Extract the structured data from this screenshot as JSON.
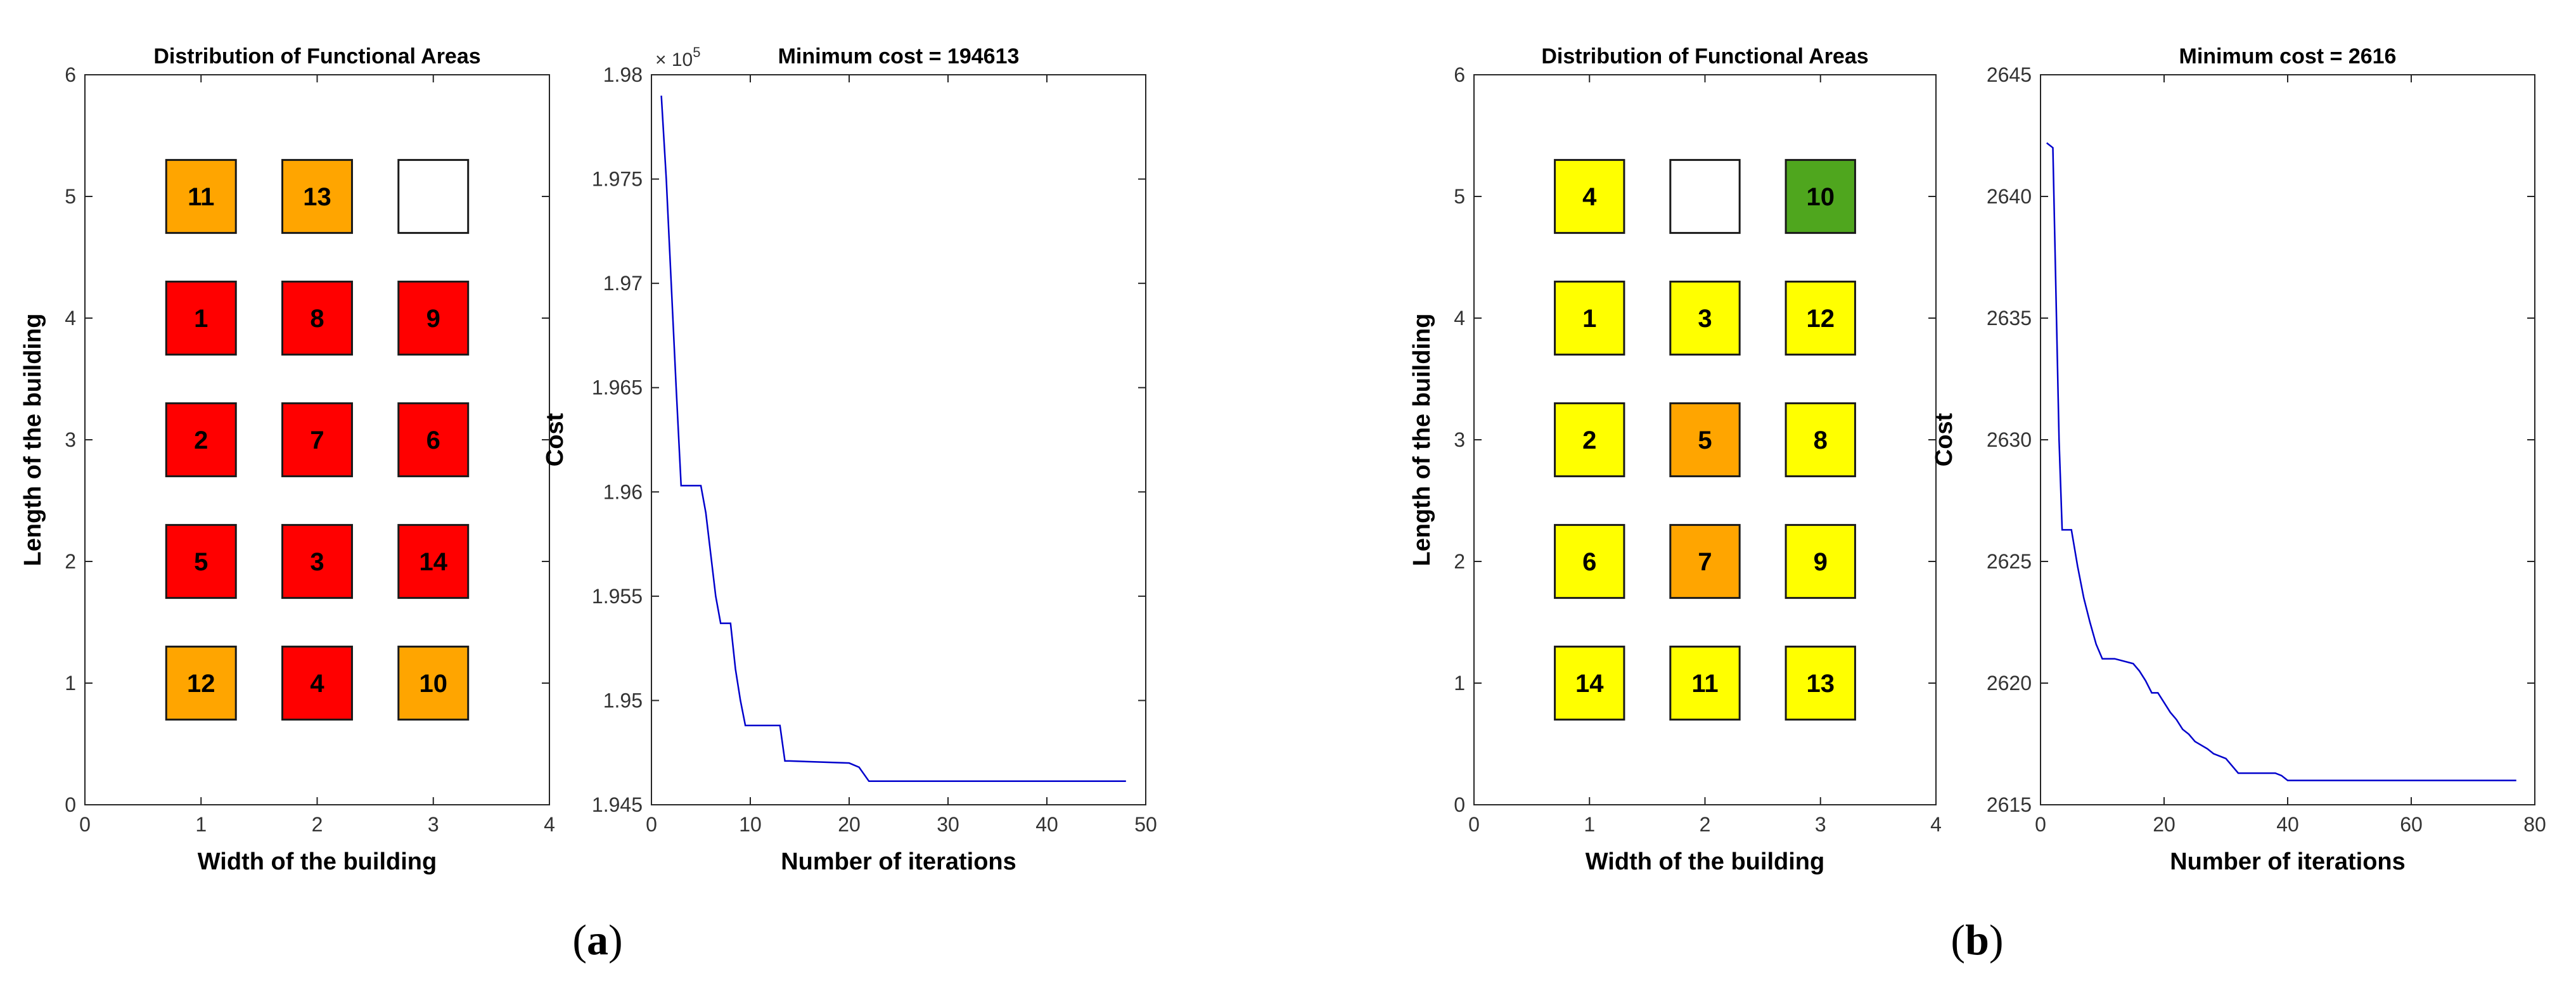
{
  "chart_data": [
    {
      "panel": "a",
      "type": "heatmap",
      "title": "Distribution of Functional Areas",
      "xlabel": "Width of the building",
      "ylabel": "Length of the building",
      "xlim": [
        0,
        4
      ],
      "ylim": [
        0,
        6
      ],
      "xticks": [
        "0",
        "1",
        "2",
        "3",
        "4"
      ],
      "yticks": [
        "0",
        "1",
        "2",
        "3",
        "4",
        "5",
        "6"
      ],
      "cells": [
        {
          "x": 1,
          "y": 5,
          "label": "11",
          "color": "#FFA500"
        },
        {
          "x": 2,
          "y": 5,
          "label": "13",
          "color": "#FFA500"
        },
        {
          "x": 3,
          "y": 5,
          "label": "",
          "color": "#FFFFFF"
        },
        {
          "x": 1,
          "y": 4,
          "label": "1",
          "color": "#FF0000"
        },
        {
          "x": 2,
          "y": 4,
          "label": "8",
          "color": "#FF0000"
        },
        {
          "x": 3,
          "y": 4,
          "label": "9",
          "color": "#FF0000"
        },
        {
          "x": 1,
          "y": 3,
          "label": "2",
          "color": "#FF0000"
        },
        {
          "x": 2,
          "y": 3,
          "label": "7",
          "color": "#FF0000"
        },
        {
          "x": 3,
          "y": 3,
          "label": "6",
          "color": "#FF0000"
        },
        {
          "x": 1,
          "y": 2,
          "label": "5",
          "color": "#FF0000"
        },
        {
          "x": 2,
          "y": 2,
          "label": "3",
          "color": "#FF0000"
        },
        {
          "x": 3,
          "y": 2,
          "label": "14",
          "color": "#FF0000"
        },
        {
          "x": 1,
          "y": 1,
          "label": "12",
          "color": "#FFA500"
        },
        {
          "x": 2,
          "y": 1,
          "label": "4",
          "color": "#FF0000"
        },
        {
          "x": 3,
          "y": 1,
          "label": "10",
          "color": "#FFA500"
        }
      ]
    },
    {
      "panel": "a",
      "type": "line",
      "title": "Minimum cost = 194613",
      "xlabel": "Number of iterations",
      "ylabel": "Cost",
      "xlim": [
        0,
        50
      ],
      "ylim": [
        194500,
        198000
      ],
      "xticks": [
        "0",
        "10",
        "20",
        "30",
        "40",
        "50"
      ],
      "yticks": [
        "1.945",
        "1.95",
        "1.955",
        "1.96",
        "1.965",
        "1.97",
        "1.975",
        "1.98"
      ],
      "yexponent": "× 10",
      "yexponent_power": "5",
      "color": "#0000CC",
      "x": [
        1,
        1.5,
        2,
        2.5,
        3,
        3.5,
        4,
        5,
        5.5,
        6,
        6.5,
        7,
        8,
        8.5,
        9,
        9.5,
        10,
        12,
        13,
        13.5,
        14,
        20,
        21,
        22,
        48
      ],
      "y": [
        197900,
        197500,
        197000,
        196500,
        196030,
        196030,
        196030,
        196030,
        195900,
        195700,
        195500,
        195370,
        195370,
        195150,
        195000,
        194880,
        194880,
        194880,
        194880,
        194710,
        194710,
        194700,
        194680,
        194613,
        194613
      ]
    },
    {
      "panel": "b",
      "type": "heatmap",
      "title": "Distribution of Functional Areas",
      "xlabel": "Width of the building",
      "ylabel": "Length of the building",
      "xlim": [
        0,
        4
      ],
      "ylim": [
        0,
        6
      ],
      "xticks": [
        "0",
        "1",
        "2",
        "3",
        "4"
      ],
      "yticks": [
        "0",
        "1",
        "2",
        "3",
        "4",
        "5",
        "6"
      ],
      "cells": [
        {
          "x": 1,
          "y": 5,
          "label": "4",
          "color": "#FFFF00"
        },
        {
          "x": 2,
          "y": 5,
          "label": "",
          "color": "#FFFFFF"
        },
        {
          "x": 3,
          "y": 5,
          "label": "10",
          "color": "#4FA61E"
        },
        {
          "x": 1,
          "y": 4,
          "label": "1",
          "color": "#FFFF00"
        },
        {
          "x": 2,
          "y": 4,
          "label": "3",
          "color": "#FFFF00"
        },
        {
          "x": 3,
          "y": 4,
          "label": "12",
          "color": "#FFFF00"
        },
        {
          "x": 1,
          "y": 3,
          "label": "2",
          "color": "#FFFF00"
        },
        {
          "x": 2,
          "y": 3,
          "label": "5",
          "color": "#FFA500"
        },
        {
          "x": 3,
          "y": 3,
          "label": "8",
          "color": "#FFFF00"
        },
        {
          "x": 1,
          "y": 2,
          "label": "6",
          "color": "#FFFF00"
        },
        {
          "x": 2,
          "y": 2,
          "label": "7",
          "color": "#FFA500"
        },
        {
          "x": 3,
          "y": 2,
          "label": "9",
          "color": "#FFFF00"
        },
        {
          "x": 1,
          "y": 1,
          "label": "14",
          "color": "#FFFF00"
        },
        {
          "x": 2,
          "y": 1,
          "label": "11",
          "color": "#FFFF00"
        },
        {
          "x": 3,
          "y": 1,
          "label": "13",
          "color": "#FFFF00"
        }
      ]
    },
    {
      "panel": "b",
      "type": "line",
      "title": "Minimum cost = 2616",
      "xlabel": "Number of iterations",
      "ylabel": "Cost",
      "xlim": [
        0,
        80
      ],
      "ylim": [
        2615,
        2645
      ],
      "xticks": [
        "0",
        "20",
        "40",
        "60",
        "80"
      ],
      "yticks": [
        "2615",
        "2620",
        "2625",
        "2630",
        "2635",
        "2640",
        "2645"
      ],
      "color": "#0000CC",
      "x": [
        1,
        2,
        2.5,
        3,
        3.5,
        4,
        5,
        6,
        7,
        8,
        9,
        10,
        12,
        15,
        16,
        17,
        18,
        19,
        20,
        21,
        22,
        23,
        24,
        25,
        27,
        28,
        30,
        31,
        32,
        38,
        39,
        40,
        77
      ],
      "y": [
        2642.2,
        2642,
        2636,
        2630,
        2626.3,
        2626.3,
        2626.3,
        2624.8,
        2623.5,
        2622.5,
        2621.6,
        2621,
        2621,
        2620.8,
        2620.5,
        2620.1,
        2619.6,
        2619.6,
        2619.2,
        2618.8,
        2618.5,
        2618.1,
        2617.9,
        2617.6,
        2617.3,
        2617.1,
        2616.9,
        2616.6,
        2616.3,
        2616.3,
        2616.2,
        2616,
        2616
      ]
    }
  ],
  "panel_labels": {
    "a_open": "(",
    "a": "a",
    "a_close": ")",
    "b_open": "(",
    "b": "b",
    "b_close": ")"
  }
}
